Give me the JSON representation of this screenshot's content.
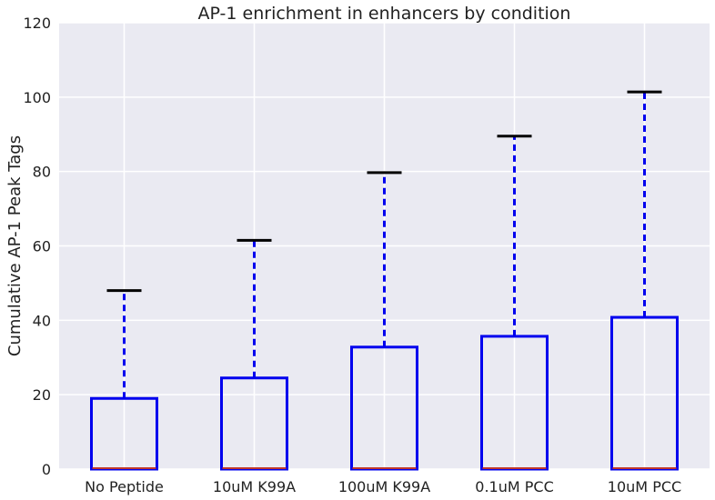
{
  "chart_data": {
    "type": "box",
    "title": "AP-1 enrichment in enhancers by condition",
    "xlabel": "",
    "ylabel": "Cumulative AP-1 Peak Tags",
    "ylim": [
      0,
      120
    ],
    "yticks": [
      "0",
      "20",
      "40",
      "60",
      "80",
      "100",
      "120"
    ],
    "grid": true,
    "categories": [
      "No Peptide",
      "10uM K99A",
      "100uM K99A",
      "0.1uM PCC",
      "10uM PCC"
    ],
    "boxes": [
      {
        "category": "No Peptide",
        "whisker_low": 0,
        "q1": 0,
        "median": 0,
        "q3": 19,
        "whisker_high": 48
      },
      {
        "category": "10uM K99A",
        "whisker_low": 0,
        "q1": 0,
        "median": 0,
        "q3": 24.5,
        "whisker_high": 61.5
      },
      {
        "category": "100uM K99A",
        "whisker_low": 0,
        "q1": 0,
        "median": 0,
        "q3": 32.8,
        "whisker_high": 79.7
      },
      {
        "category": "0.1uM PCC",
        "whisker_low": 0,
        "q1": 0,
        "median": 0,
        "q3": 35.7,
        "whisker_high": 89.5
      },
      {
        "category": "10uM PCC",
        "whisker_low": 0,
        "q1": 0,
        "median": 0,
        "q3": 40.8,
        "whisker_high": 101.4
      }
    ],
    "colors": {
      "background": "#EAEAF2",
      "grid": "#FFFFFF",
      "box": "#0000EE",
      "whisker": "#0000EE",
      "cap": "#000000",
      "median": "#C0392B"
    }
  }
}
